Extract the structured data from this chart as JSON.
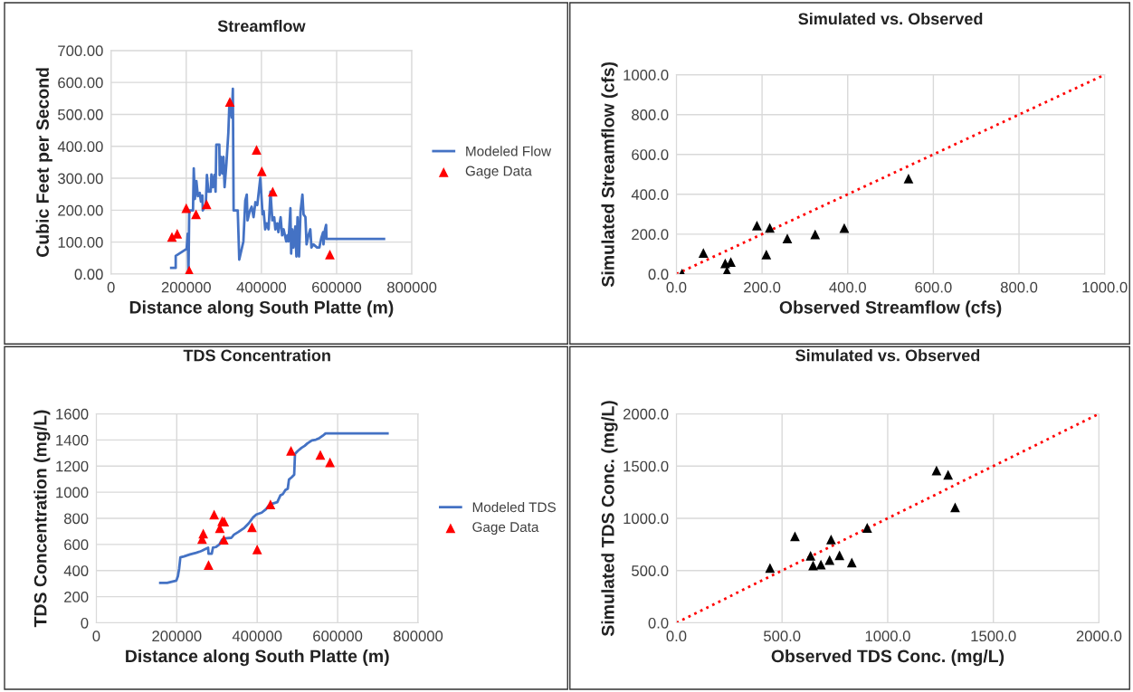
{
  "chart_data": [
    {
      "type": "line",
      "title": "Streamflow",
      "xlabel": "Distance along South Platte (m)",
      "ylabel": "Cubic Feet per Second",
      "xlim": [
        0,
        800000
      ],
      "xticks": [
        0,
        200000,
        400000,
        600000,
        800000
      ],
      "ylim": [
        0,
        700
      ],
      "yticks": [
        {
          "value": 0,
          "label": "0.00"
        },
        {
          "value": 100,
          "label": "100.00"
        },
        {
          "value": 200,
          "label": "200.00"
        },
        {
          "value": 300,
          "label": "300.00"
        },
        {
          "value": 400,
          "label": "400.00"
        },
        {
          "value": 500,
          "label": "500.00"
        },
        {
          "value": 600,
          "label": "600.00"
        },
        {
          "value": 700,
          "label": "700.00"
        }
      ],
      "grid": true,
      "legend": "right",
      "series": [
        {
          "name": "Modeled Flow",
          "color": "#4472c4",
          "x": [
            160000,
            172000,
            172000,
            201000,
            204000,
            206000,
            208000,
            218000,
            220000,
            223000,
            227000,
            231000,
            236000,
            239000,
            243000,
            244000,
            252000,
            255000,
            259000,
            265000,
            267000,
            271000,
            275000,
            278000,
            280000,
            288000,
            289000,
            292000,
            296000,
            299000,
            302000,
            307000,
            312000,
            315000,
            321000,
            324000,
            326000,
            337000,
            341000,
            352000,
            357000,
            361000,
            363000,
            369000,
            374000,
            379000,
            384000,
            389000,
            397000,
            403000,
            406000,
            410000,
            414000,
            419000,
            424000,
            429000,
            434000,
            437000,
            442000,
            445000,
            451000,
            455000,
            459000,
            466000,
            469000,
            472000,
            477000,
            479000,
            482000,
            485000,
            490000,
            493000,
            496000,
            500000,
            504000,
            509000,
            512000,
            517000,
            520000,
            525000,
            530000,
            533000,
            538000,
            548000,
            554000,
            559000,
            564000,
            565000,
            569000,
            572000,
            573000,
            726000
          ],
          "values": [
            19,
            19,
            57,
            79,
            126,
            0,
            199,
            199,
            331,
            235,
            291,
            244,
            254,
            227,
            246,
            199,
            216,
            310,
            258,
            258,
            312,
            272,
            310,
            258,
            405,
            405,
            310,
            367,
            315,
            367,
            272,
            348,
            443,
            542,
            490,
            580,
            199,
            199,
            45,
            102,
            230,
            249,
            168,
            197,
            211,
            178,
            225,
            216,
            301,
            187,
            197,
            140,
            159,
            140,
            258,
            168,
            178,
            140,
            159,
            131,
            178,
            121,
            140,
            102,
            121,
            102,
            206,
            64,
            140,
            83,
            149,
            55,
            178,
            55,
            197,
            249,
            187,
            178,
            93,
            121,
            140,
            83,
            93,
            83,
            83,
            112,
            131,
            93,
            140,
            154,
            110,
            110
          ]
        },
        {
          "name": "Gage Data",
          "type": "scatter",
          "marker": "triangle",
          "color": "#ff0000",
          "x": [
            162000,
            176000,
            200000,
            208000,
            226000,
            254000,
            316000,
            387000,
            401000,
            430000,
            582000
          ],
          "values": [
            116,
            126,
            206,
            11,
            187,
            218,
            539,
            389,
            322,
            258,
            61
          ]
        }
      ]
    },
    {
      "type": "scatter",
      "title": "Simulated vs. Observed",
      "xlabel": "Observed Streamflow (cfs)",
      "ylabel": "Simulated Streamflow (cfs)",
      "xlim": [
        0,
        1000
      ],
      "xticks": [
        {
          "value": 0,
          "label": "0.0"
        },
        {
          "value": 200,
          "label": "200.0"
        },
        {
          "value": 400,
          "label": "400.0"
        },
        {
          "value": 600,
          "label": "600.0"
        },
        {
          "value": 800,
          "label": "800.0"
        },
        {
          "value": 1000,
          "label": "1000.0"
        }
      ],
      "ylim": [
        0,
        1000
      ],
      "yticks": [
        {
          "value": 0,
          "label": "0.0"
        },
        {
          "value": 200,
          "label": "200.0"
        },
        {
          "value": 400,
          "label": "400.0"
        },
        {
          "value": 600,
          "label": "600.0"
        },
        {
          "value": 800,
          "label": "800.0"
        },
        {
          "value": 1000,
          "label": "1000.0"
        }
      ],
      "grid": true,
      "series": [
        {
          "marker": "triangle",
          "color": "#000000",
          "x": [
            13,
            63,
            114,
            127,
            118,
            188,
            218,
            210,
            259,
            324,
            392,
            542
          ],
          "values": [
            3,
            106,
            54,
            60,
            15,
            243,
            232,
            98,
            178,
            199,
            231,
            479
          ]
        },
        {
          "type": "line",
          "line_style": "dotted",
          "color": "#ff0000",
          "x": [
            0,
            1000
          ],
          "values": [
            0,
            1000
          ]
        }
      ]
    },
    {
      "type": "line",
      "title": "TDS Concentration",
      "xlabel": "Distance along South Platte (m)",
      "ylabel": "TDS Concentration (mg/L)",
      "xlim": [
        0,
        800000
      ],
      "xticks": [
        0,
        200000,
        400000,
        600000,
        800000
      ],
      "ylim": [
        0,
        1600
      ],
      "yticks": [
        0,
        200,
        400,
        600,
        800,
        1000,
        1200,
        1400,
        1600
      ],
      "grid": true,
      "legend": "right",
      "series": [
        {
          "name": "Modeled TDS",
          "color": "#4472c4",
          "x": [
            159000,
            176000,
            199000,
            203000,
            206000,
            209000,
            218000,
            233000,
            248000,
            259000,
            263000,
            272000,
            278000,
            279000,
            287000,
            290000,
            297000,
            306000,
            312000,
            321000,
            336000,
            342000,
            353000,
            368000,
            379000,
            390000,
            398000,
            411000,
            422000,
            428000,
            437000,
            450000,
            458000,
            464000,
            470000,
            476000,
            479000,
            486000,
            492000,
            494000,
            501000,
            510000,
            518000,
            525000,
            536000,
            546000,
            555000,
            563000,
            570000,
            724000
          ],
          "values": [
            305,
            305,
            323,
            358,
            416,
            501,
            508,
            524,
            536,
            547,
            552,
            566,
            575,
            529,
            529,
            575,
            580,
            600,
            635,
            647,
            651,
            674,
            695,
            727,
            762,
            808,
            829,
            843,
            870,
            894,
            912,
            924,
            977,
            986,
            1016,
            1027,
            1097,
            1115,
            1134,
            1293,
            1316,
            1339,
            1355,
            1374,
            1397,
            1402,
            1415,
            1432,
            1450,
            1450
          ]
        },
        {
          "name": "Gage Data",
          "type": "scatter",
          "marker": "triangle",
          "color": "#ff0000",
          "x": [
            484000,
            557000,
            581000,
            293000,
            313000,
            318000,
            307000,
            266000,
            263000,
            387000,
            317000,
            433000,
            400000,
            279000
          ],
          "values": [
            1316,
            1286,
            1228,
            829,
            778,
            774,
            725,
            683,
            642,
            732,
            637,
            907,
            561,
            443
          ]
        }
      ]
    },
    {
      "type": "scatter",
      "title": "Simulated vs. Observed",
      "xlabel": "Observed TDS Conc. (mg/L)",
      "ylabel": "Simulated TDS Conc. (mg/L)",
      "xlim": [
        0,
        2000
      ],
      "xticks": [
        {
          "value": 0,
          "label": "0.0"
        },
        {
          "value": 500,
          "label": "500.0"
        },
        {
          "value": 1000,
          "label": "1000.0"
        },
        {
          "value": 1500,
          "label": "1500.0"
        },
        {
          "value": 2000,
          "label": "2000.0"
        }
      ],
      "ylim": [
        0,
        2000
      ],
      "yticks": [
        {
          "value": 0,
          "label": "0.0"
        },
        {
          "value": 500,
          "label": "500.0"
        },
        {
          "value": 1000,
          "label": "1000.0"
        },
        {
          "value": 1500,
          "label": "1500.0"
        },
        {
          "value": 2000,
          "label": "2000.0"
        }
      ],
      "grid": true,
      "series": [
        {
          "marker": "triangle",
          "color": "#000000",
          "x": [
            443,
            561,
            635,
            647,
            684,
            725,
            732,
            772,
            830,
            903,
            1231,
            1286,
            1319
          ],
          "values": [
            525,
            828,
            641,
            548,
            557,
            600,
            797,
            646,
            577,
            909,
            1457,
            1417,
            1105
          ]
        },
        {
          "type": "line",
          "line_style": "dotted",
          "color": "#ff0000",
          "x": [
            0,
            2000
          ],
          "values": [
            0,
            2000
          ]
        }
      ]
    }
  ]
}
